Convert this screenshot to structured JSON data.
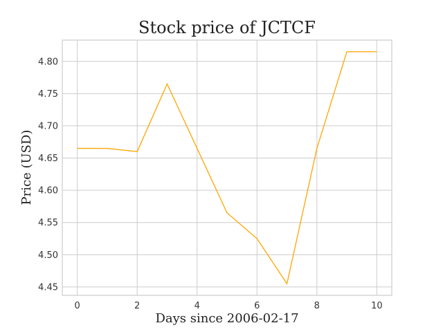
{
  "chart_data": {
    "type": "line",
    "title": "Stock price of JCTCF",
    "xlabel": "Days since 2006-02-17",
    "ylabel": "Price (USD)",
    "x": [
      0,
      1,
      2,
      3,
      4,
      5,
      6,
      7,
      8,
      9,
      10
    ],
    "series": [
      {
        "values": [
          4.665,
          4.665,
          4.66,
          4.765,
          4.665,
          4.565,
          4.525,
          4.455,
          4.665,
          4.815,
          4.815
        ],
        "color": "#ffa500"
      }
    ],
    "xlim": [
      -0.5,
      10.5
    ],
    "ylim": [
      4.437,
      4.833
    ],
    "xticks": [
      0,
      2,
      4,
      6,
      8,
      10
    ],
    "xtick_labels": [
      "0",
      "2",
      "4",
      "6",
      "8",
      "10"
    ],
    "yticks": [
      4.45,
      4.5,
      4.55,
      4.6,
      4.65,
      4.7,
      4.75,
      4.8
    ],
    "ytick_labels": [
      "4.45",
      "4.50",
      "4.55",
      "4.60",
      "4.65",
      "4.70",
      "4.75",
      "4.80"
    ],
    "grid": true,
    "legend": false
  }
}
